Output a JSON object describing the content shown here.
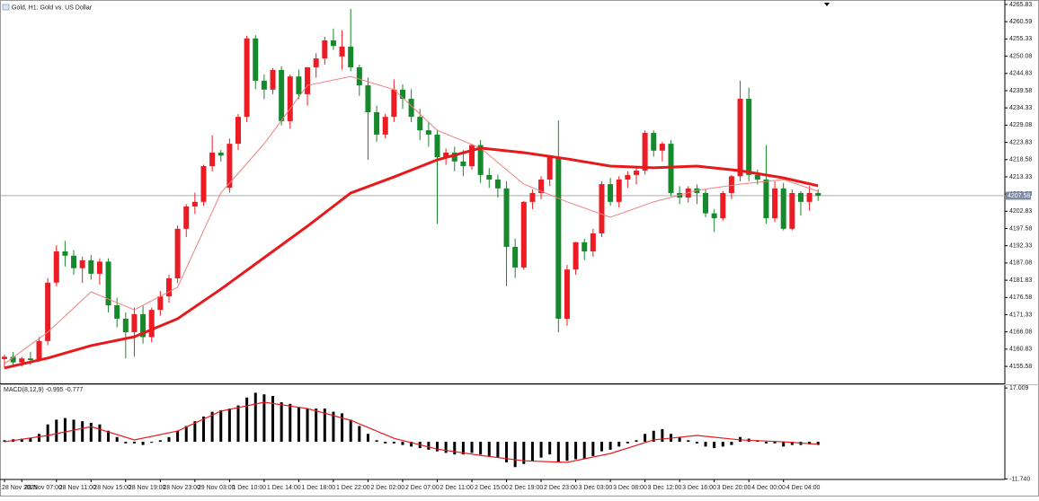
{
  "chart_data": {
    "type": "candlestick",
    "title": "Gold, H1: Gold vs. US Dollar",
    "categories": [
      "28 Nov 2025",
      null,
      "28 Nov 07:00",
      null,
      null,
      null,
      "28 Nov 11:00",
      null,
      null,
      null,
      "28 Nov 15:00",
      null,
      null,
      null,
      "28 Nov 19:00",
      null,
      null,
      null,
      "28 Nov 23:00",
      null,
      null,
      null,
      "29 Nov 03:00",
      null,
      null,
      null,
      "1 Dec 10:00",
      null,
      null,
      null,
      "1 Dec 14:00",
      null,
      null,
      null,
      "1 Dec 18:00",
      null,
      null,
      null,
      "1 Dec 22:00",
      null,
      null,
      null,
      "2 Dec 02:00",
      null,
      null,
      null,
      "2 Dec 07:00",
      null,
      null,
      null,
      "2 Dec 11:00",
      null,
      null,
      null,
      "2 Dec 15:00",
      null,
      null,
      null,
      "2 Dec 19:00",
      null,
      null,
      null,
      "2 Dec 23:00",
      null,
      null,
      null,
      "3 Dec 03:00",
      null,
      null,
      null,
      "3 Dec 08:00",
      null,
      null,
      null,
      "3 Dec 12:00",
      null,
      null,
      null,
      "3 Dec 16:00",
      null,
      null,
      null,
      "3 Dec 20:00",
      null,
      null,
      null,
      "4 Dec 00:00",
      null,
      null,
      null,
      "4 Dec 04:00",
      null,
      null,
      null,
      null
    ],
    "open": [
      4157.8,
      4158.5,
      4156.8,
      4158.0,
      4157.5,
      4163.3,
      4181.1,
      4190.6,
      4189.3,
      4185.5,
      4187.9,
      4183.8,
      4187.5,
      4174.2,
      4170.1,
      4166.0,
      4171.5,
      4164.5,
      4172.8,
      4176.9,
      4182.4,
      4197.5,
      4204.3,
      4205.7,
      4216.6,
      4220.7,
      4210.0,
      4223.4,
      4231.6,
      4255.5,
      4242.6,
      4239.9,
      4245.9,
      4230.3,
      4243.9,
      4238.5,
      4246.7,
      4249.4,
      4254.9,
      4250.0,
      4253.0,
      4246.7,
      4241.2,
      4233.0,
      4226.2,
      4231.6,
      4239.9,
      4237.1,
      4231.6,
      4227.5,
      4226.2,
      4219.3,
      4220.7,
      4218.0,
      4216.6,
      4223.0,
      4213.9,
      4212.5,
      4209.8,
      4192.0,
      4185.7,
      4205.7,
      4208.4,
      4212.5,
      4219.3,
      4170.1,
      4185.1,
      4193.4,
      4190.6,
      4196.1,
      4211.1,
      4205.7,
      4212.5,
      4213.9,
      4215.2,
      4226.7,
      4221.3,
      4223.4,
      4208.4,
      4207.0,
      4209.8,
      4208.4,
      4202.2,
      4200.7,
      4208.4,
      4213.5,
      4237.1,
      4213.9,
      4212.5,
      4200.7,
      4209.8,
      4197.5,
      4208.4,
      4205.7,
      4208.4
    ],
    "high": [
      4159.2,
      4160.0,
      4158.5,
      4160.0,
      4164.5,
      4182.5,
      4192.5,
      4193.8,
      4191.0,
      4189.0,
      4189.5,
      4188.5,
      4188.5,
      4176.5,
      4172.0,
      4173.5,
      4174.0,
      4173.5,
      4178.5,
      4183.5,
      4198.5,
      4205.0,
      4208.5,
      4217.0,
      4226.0,
      4221.5,
      4225.0,
      4232.5,
      4256.3,
      4256.5,
      4244.5,
      4246.5,
      4247.0,
      4244.5,
      4246.0,
      4246.8,
      4251.0,
      4256.0,
      4258.5,
      4258.0,
      4264.5,
      4247.5,
      4243.5,
      4235.0,
      4232.5,
      4243.0,
      4241.5,
      4240.0,
      4234.0,
      4230.0,
      4227.5,
      4222.0,
      4222.5,
      4221.5,
      4223.4,
      4224.5,
      4216.0,
      4214.0,
      4212.0,
      4194.5,
      4206.0,
      4209.5,
      4213.5,
      4220.0,
      4230.5,
      4186.5,
      4193.5,
      4194.5,
      4197.5,
      4212.0,
      4213.0,
      4213.5,
      4215.0,
      4216.5,
      4227.5,
      4227.5,
      4224.0,
      4224.5,
      4210.5,
      4210.5,
      4211.0,
      4209.5,
      4203.5,
      4209.0,
      4213.9,
      4242.6,
      4240.5,
      4215.5,
      4223.0,
      4212.0,
      4211.5,
      4209.5,
      4209.0,
      4210.5,
      4209.5
    ],
    "low": [
      4155.0,
      4155.5,
      4155.5,
      4156.0,
      4157.0,
      4162.0,
      4180.0,
      4186.0,
      4183.5,
      4181.0,
      4182.0,
      4180.5,
      4172.0,
      4167.5,
      4158.0,
      4158.5,
      4162.5,
      4163.0,
      4171.0,
      4175.0,
      4181.0,
      4195.0,
      4202.0,
      4204.5,
      4215.0,
      4218.0,
      4208.5,
      4221.5,
      4230.0,
      4240.0,
      4237.0,
      4238.5,
      4229.0,
      4228.0,
      4237.0,
      4235.0,
      4243.5,
      4247.5,
      4252.0,
      4246.0,
      4245.5,
      4238.0,
      4218.5,
      4224.0,
      4225.0,
      4230.0,
      4234.0,
      4230.0,
      4224.5,
      4222.5,
      4199.0,
      4217.0,
      4215.0,
      4213.5,
      4215.5,
      4211.5,
      4210.0,
      4207.0,
      4180.0,
      4182.5,
      4185.0,
      4203.5,
      4206.5,
      4210.5,
      4166.0,
      4168.0,
      4183.5,
      4188.0,
      4189.0,
      4195.0,
      4204.5,
      4204.0,
      4210.0,
      4211.0,
      4214.0,
      4219.5,
      4218.0,
      4207.5,
      4205.0,
      4205.5,
      4205.0,
      4201.0,
      4196.5,
      4200.0,
      4206.5,
      4212.0,
      4212.0,
      4211.0,
      4199.0,
      4199.5,
      4197.0,
      4197.0,
      4201.5,
      4203.0,
      4206.0
    ],
    "close": [
      4158.5,
      4156.8,
      4158.0,
      4157.5,
      4163.3,
      4181.1,
      4190.6,
      4189.3,
      4185.5,
      4187.9,
      4183.8,
      4187.5,
      4174.2,
      4170.1,
      4166.0,
      4171.5,
      4164.5,
      4172.8,
      4176.9,
      4182.4,
      4197.5,
      4204.3,
      4205.7,
      4216.6,
      4220.7,
      4219.8,
      4223.4,
      4231.6,
      4255.5,
      4242.6,
      4239.9,
      4245.9,
      4230.3,
      4243.9,
      4238.5,
      4246.7,
      4249.4,
      4254.9,
      4253.2,
      4253.0,
      4246.7,
      4241.2,
      4233.0,
      4226.2,
      4231.6,
      4239.9,
      4237.1,
      4231.6,
      4227.5,
      4226.2,
      4219.3,
      4220.7,
      4218.0,
      4216.6,
      4223.0,
      4213.9,
      4212.5,
      4209.8,
      4192.0,
      4185.7,
      4205.7,
      4208.4,
      4212.5,
      4219.3,
      4170.1,
      4185.1,
      4193.4,
      4190.6,
      4196.1,
      4211.1,
      4205.7,
      4212.5,
      4213.9,
      4215.2,
      4226.7,
      4221.3,
      4223.4,
      4208.4,
      4207.0,
      4209.8,
      4208.4,
      4202.2,
      4200.7,
      4208.4,
      4213.5,
      4237.1,
      4213.9,
      4212.5,
      4200.7,
      4209.8,
      4197.5,
      4208.4,
      4205.7,
      4208.4,
      4207.58
    ],
    "up_color": "#ec1c24",
    "down_color": "#15892b",
    "ylim": [
      4150.4,
      4267.2
    ],
    "yticks": [
      4265.83,
      4260.59,
      4255.33,
      4250.08,
      4244.83,
      4239.58,
      4234.33,
      4229.08,
      4223.83,
      4218.58,
      4213.33,
      4208.08,
      4202.83,
      4197.58,
      4192.33,
      4187.08,
      4181.83,
      4176.58,
      4171.33,
      4166.08,
      4160.83,
      4155.58
    ],
    "current_price": 4207.58,
    "overlays": [
      {
        "color": "#f08080",
        "width": 1,
        "x": [
          0,
          5,
          10,
          15,
          20,
          25,
          30,
          35,
          40,
          45,
          50,
          55,
          60,
          65,
          70,
          75,
          80,
          85,
          90,
          94
        ],
        "values": [
          4156.4,
          4166.0,
          4178.3,
          4172.8,
          4179.7,
          4208.4,
          4223.4,
          4241.2,
          4243.9,
          4239.9,
          4227.5,
          4222.1,
          4211.1,
          4205.7,
          4201.0,
          4205.7,
          4209.2,
          4211.1,
          4212.5,
          4208.9
        ]
      },
      {
        "color": "#e8191c",
        "width": 3,
        "x": [
          0,
          5,
          10,
          15,
          20,
          25,
          30,
          35,
          40,
          45,
          50,
          55,
          60,
          65,
          70,
          75,
          80,
          85,
          90,
          94
        ],
        "values": [
          4155.1,
          4158.1,
          4161.9,
          4164.6,
          4170.1,
          4179.1,
          4188.7,
          4198.3,
          4208.4,
          4213.3,
          4218.5,
          4222.1,
          4220.7,
          4218.8,
          4216.6,
          4216.1,
          4216.6,
          4215.2,
          4213.0,
          4210.6
        ]
      }
    ],
    "macd": {
      "title": "MACD(8,12,9) -0.995 -0.777",
      "histogram": [
        0.5,
        0.8,
        1.0,
        1.2,
        2.5,
        5.5,
        7.0,
        7.5,
        7.0,
        6.5,
        6.0,
        5.5,
        3.5,
        1.5,
        -0.5,
        -0.5,
        -1.0,
        -0.3,
        0.5,
        1.5,
        3.5,
        5.0,
        6.5,
        8.0,
        9.5,
        10.0,
        10.5,
        11.5,
        14.0,
        15.5,
        15.0,
        14.5,
        12.5,
        12.0,
        11.0,
        10.5,
        10.5,
        10.5,
        9.5,
        9.0,
        7.0,
        5.0,
        2.5,
        0.5,
        -0.5,
        -0.5,
        -1.0,
        -1.5,
        -2.0,
        -2.5,
        -3.0,
        -3.5,
        -4.0,
        -4.0,
        -3.5,
        -4.0,
        -4.5,
        -5.0,
        -6.5,
        -8.0,
        -7.0,
        -6.0,
        -5.0,
        -4.0,
        -6.5,
        -6.0,
        -5.5,
        -5.5,
        -4.5,
        -3.0,
        -2.5,
        -1.5,
        -0.5,
        0.5,
        2.5,
        3.5,
        4.0,
        2.5,
        1.5,
        0.5,
        -0.5,
        -1.5,
        -2.0,
        -1.5,
        -1.0,
        1.5,
        1.0,
        0.5,
        -0.5,
        -0.5,
        -1.5,
        -1.0,
        -1.0,
        -0.8,
        -0.995
      ],
      "histogram_color": "#000000",
      "signal": {
        "color": "#e8191c",
        "x": [
          0,
          5,
          10,
          15,
          20,
          25,
          30,
          35,
          40,
          45,
          50,
          55,
          60,
          65,
          70,
          75,
          80,
          85,
          90,
          94
        ],
        "values": [
          0,
          2.0,
          4.8,
          0.6,
          3.4,
          9.7,
          12.5,
          10.5,
          6.8,
          1.1,
          -2.3,
          -4.3,
          -6.0,
          -6.5,
          -3.7,
          0.6,
          2.0,
          0.6,
          0,
          -0.777
        ]
      },
      "ylim": [
        -11.9,
        17.9
      ],
      "yticks": [
        17.009,
        {
          "value": -11.74,
          "label": "-11.740"
        }
      ]
    }
  }
}
